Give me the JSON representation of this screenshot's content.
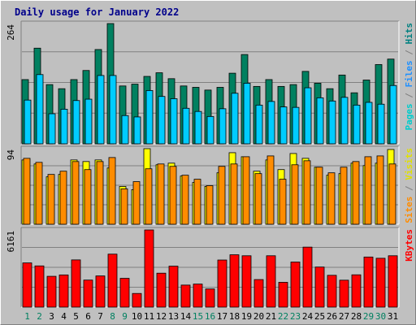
{
  "chart_data": {
    "type": "bar",
    "title": "Daily usage for January 2022",
    "x": [
      "1",
      "2",
      "3",
      "4",
      "5",
      "6",
      "7",
      "8",
      "9",
      "10",
      "11",
      "12",
      "13",
      "14",
      "15",
      "16",
      "17",
      "18",
      "19",
      "20",
      "21",
      "22",
      "23",
      "24",
      "25",
      "26",
      "27",
      "28",
      "29",
      "30",
      "31"
    ],
    "weekend_days": [
      "1",
      "2",
      "8",
      "9",
      "15",
      "16",
      "22",
      "23",
      "29",
      "30"
    ],
    "panels": [
      {
        "id": "top",
        "max_label": "264",
        "ymax": 264,
        "right_label": [
          {
            "text": "Pages",
            "color": "#00cccc"
          },
          {
            "text": " / ",
            "color": "#808080"
          },
          {
            "text": "Files",
            "color": "#1e90ff"
          },
          {
            "text": " / ",
            "color": "#808080"
          },
          {
            "text": "Hits",
            "color": "#008080"
          }
        ],
        "series": [
          {
            "name": "Hits",
            "color": "#008060",
            "values": [
              141,
              210,
              130,
              121,
              141,
              161,
              207,
              264,
              127,
              131,
              148,
              156,
              143,
              127,
              124,
              118,
              124,
              155,
              196,
              126,
              141,
              126,
              130,
              159,
              133,
              121,
              151,
              112,
              140,
              174,
              186
            ]
          },
          {
            "name": "Files",
            "color": "#1e90ff",
            "values": [
              0,
              0,
              0,
              0,
              0,
              0,
              0,
              0,
              0,
              0,
              0,
              0,
              0,
              0,
              0,
              0,
              0,
              0,
              0,
              0,
              0,
              0,
              0,
              0,
              0,
              0,
              0,
              0,
              0,
              0,
              0
            ]
          },
          {
            "name": "Pages",
            "color": "#00ccff",
            "values": [
              96,
              152,
              66,
              76,
              95,
              98,
              150,
              150,
              62,
              59,
              117,
              104,
              99,
              78,
              71,
              60,
              77,
              111,
              133,
              85,
              93,
              81,
              80,
              123,
              101,
              94,
              102,
              85,
              91,
              87,
              128
            ]
          }
        ]
      },
      {
        "id": "mid",
        "max_label": "94",
        "ymax": 94,
        "right_label": [
          {
            "text": "Sites",
            "color": "#ff8c00"
          },
          {
            "text": " / ",
            "color": "#808080"
          },
          {
            "text": "Visits",
            "color": "#e0e000"
          }
        ],
        "series": [
          {
            "name": "Visits",
            "color": "#ffff00",
            "values": [
              80,
              75,
              59,
              62,
              80,
              78,
              80,
              70,
              47,
              43,
              94,
              74,
              76,
              60,
              52,
              47,
              64,
              89,
              84,
              66,
              80,
              68,
              88,
              82,
              71,
              61,
              63,
              76,
              73,
              76,
              93
            ]
          },
          {
            "name": "Sites",
            "color": "#ff8c00",
            "values": [
              82,
              77,
              62,
              66,
              78,
              68,
              78,
              83,
              44,
              53,
              69,
              75,
              72,
              61,
              56,
              48,
              72,
              75,
              84,
              63,
              85,
              56,
              74,
              79,
              71,
              64,
              71,
              78,
              84,
              85,
              75
            ]
          }
        ]
      },
      {
        "id": "bot",
        "max_label": "6161",
        "ymax": 6161,
        "right_label": [
          {
            "text": "KBytes",
            "color": "#ff0000"
          }
        ],
        "series": [
          {
            "name": "KBytes",
            "color": "#ff0000",
            "values": [
              3530,
              3290,
              2460,
              2570,
              3770,
              2160,
              2490,
              4230,
              2300,
              1090,
              6161,
              2710,
              3270,
              1760,
              1840,
              1450,
              3760,
              4180,
              4100,
              2200,
              4100,
              1980,
              3600,
              4790,
              3200,
              2540,
              2150,
              2580,
              4000,
              3900,
              4100
            ]
          }
        ]
      }
    ]
  }
}
